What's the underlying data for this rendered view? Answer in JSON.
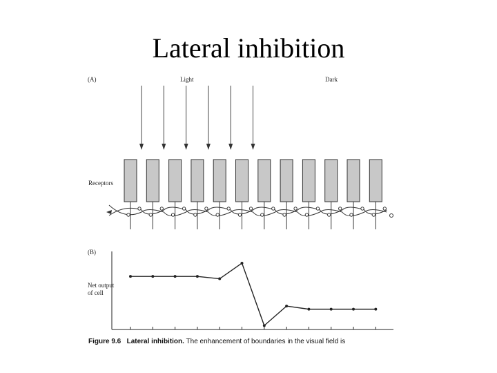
{
  "slide": {
    "title": "Lateral inhibition"
  },
  "panel_a": {
    "label": "(A)",
    "light_label": "Light",
    "dark_label": "Dark",
    "receptors_label": "Receptors",
    "receptor_count": 12,
    "lit_receptor_count": 6
  },
  "panel_b": {
    "label": "(B)",
    "y_label": "Net output of cell"
  },
  "caption": {
    "figure_number": "Figure 9.6",
    "title": "Lateral inhibition.",
    "text": "The enhancement of boundaries in the visual field is"
  },
  "chart_data": {
    "type": "line",
    "x": [
      1,
      2,
      3,
      4,
      5,
      6,
      7,
      8,
      9,
      10,
      11,
      12
    ],
    "series": [
      {
        "values": [
          0.68,
          0.68,
          0.68,
          0.68,
          0.65,
          0.85,
          0.05,
          0.3,
          0.26,
          0.26,
          0.26,
          0.26
        ]
      }
    ]
  }
}
